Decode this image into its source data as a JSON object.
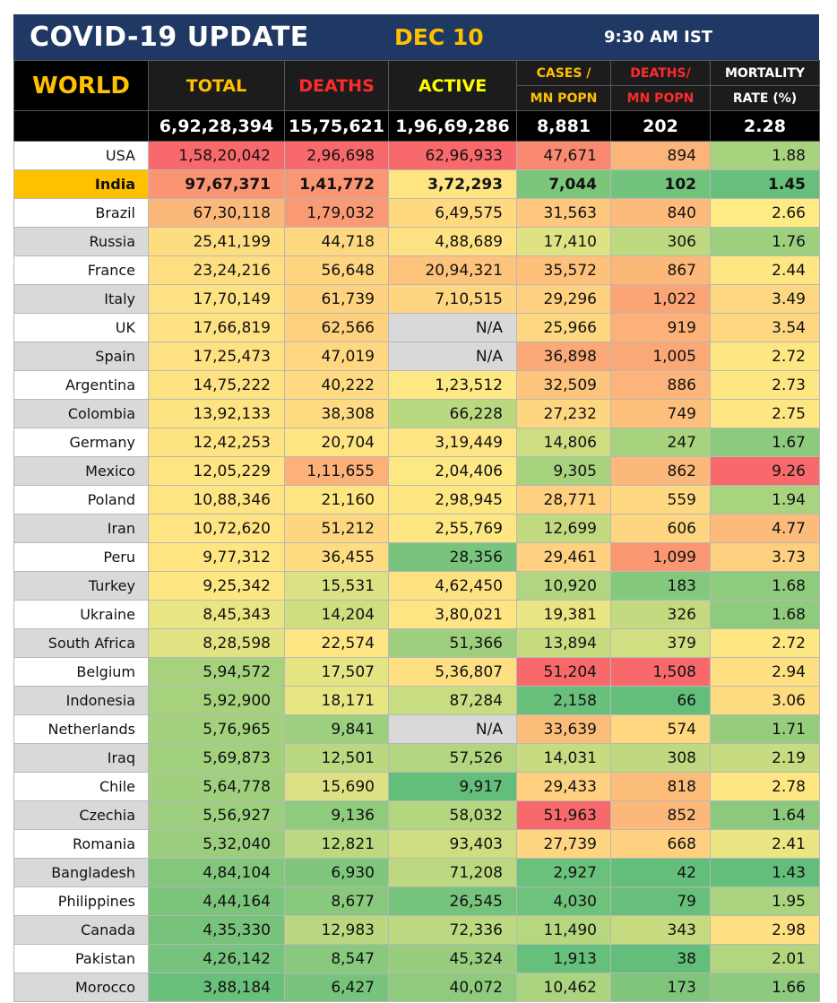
{
  "header": {
    "title": "COVID-19 UPDATE",
    "date": "DEC 10",
    "time": "9:30 AM IST"
  },
  "columns": {
    "region": "WORLD",
    "total": "TOTAL",
    "deaths": "DEATHS",
    "active": "ACTIVE",
    "cases_per_mn_1": "CASES /",
    "cases_per_mn_2": "MN POPN",
    "deaths_per_mn_1": "DEATHS/",
    "deaths_per_mn_2": "MN POPN",
    "mortality_1": "MORTALITY",
    "mortality_2": "RATE (%)"
  },
  "world": {
    "total": "6,92,28,394",
    "deaths": "15,75,621",
    "active": "1,96,69,286",
    "cases_per_mn": "8,881",
    "deaths_per_mn": "202",
    "mortality": "2.28"
  },
  "colors": {
    "title_bar": "#1f3864",
    "accent": "#ffc000",
    "heat_red": "#f8696b",
    "heat_orange": "#fbaa77",
    "heat_yellow": "#ffeb84",
    "heat_green": "#63be7b"
  },
  "rows": [
    {
      "country": "USA",
      "total": "1,58,20,042",
      "deaths": "2,96,698",
      "active": "62,96,933",
      "cases_mn": "47,671",
      "deaths_mn": "894",
      "mortality": "1.88",
      "c": [
        "#f8696b",
        "#f8696b",
        "#f8696b",
        "#f98a71",
        "#fbb479",
        "#a7d37e"
      ]
    },
    {
      "country": "India",
      "total": "97,67,371",
      "deaths": "1,41,772",
      "active": "3,72,293",
      "cases_mn": "7,044",
      "deaths_mn": "102",
      "mortality": "1.45",
      "c": [
        "#fa9473",
        "#fa9673",
        "#fee582",
        "#7cc67c",
        "#72c37c",
        "#66bf7b"
      ]
    },
    {
      "country": "Brazil",
      "total": "67,30,118",
      "deaths": "1,79,032",
      "active": "6,49,575",
      "cases_mn": "31,563",
      "deaths_mn": "840",
      "mortality": "2.66",
      "c": [
        "#fcb87a",
        "#fa9a74",
        "#fed980",
        "#fdc77d",
        "#fcbb7a",
        "#feeb84"
      ]
    },
    {
      "country": "Russia",
      "total": "25,41,199",
      "deaths": "44,718",
      "active": "4,88,689",
      "cases_mn": "17,410",
      "deaths_mn": "306",
      "mortality": "1.76",
      "c": [
        "#fedd81",
        "#fed880",
        "#fee182",
        "#dfe283",
        "#bfd980",
        "#9dd07e"
      ]
    },
    {
      "country": "France",
      "total": "23,24,216",
      "deaths": "56,648",
      "active": "20,94,321",
      "cases_mn": "35,572",
      "deaths_mn": "867",
      "mortality": "2.44",
      "c": [
        "#fede81",
        "#fed47f",
        "#fdc27c",
        "#fdc17c",
        "#fbb879",
        "#fee683"
      ]
    },
    {
      "country": "Italy",
      "total": "17,70,149",
      "deaths": "61,739",
      "active": "7,10,515",
      "cases_mn": "29,296",
      "deaths_mn": "1,022",
      "mortality": "3.49",
      "c": [
        "#fee182",
        "#fed27f",
        "#fed680",
        "#fed07f",
        "#fba476",
        "#fed781"
      ]
    },
    {
      "country": "UK",
      "total": "17,66,819",
      "deaths": "62,566",
      "active": "N/A",
      "cases_mn": "25,966",
      "deaths_mn": "919",
      "mortality": "3.54",
      "c": [
        "#fee182",
        "#fed17f",
        "#d9d9d9",
        "#fed881",
        "#fcb179",
        "#fed780"
      ]
    },
    {
      "country": "Spain",
      "total": "17,25,473",
      "deaths": "47,019",
      "active": "N/A",
      "cases_mn": "36,898",
      "deaths_mn": "1,005",
      "mortality": "2.72",
      "c": [
        "#fee182",
        "#fed780",
        "#d9d9d9",
        "#fbaa77",
        "#fba877",
        "#fee783"
      ]
    },
    {
      "country": "Argentina",
      "total": "14,75,222",
      "deaths": "40,222",
      "active": "1,23,512",
      "cases_mn": "32,509",
      "deaths_mn": "886",
      "mortality": "2.73",
      "c": [
        "#fee282",
        "#feda81",
        "#fee883",
        "#fdc57c",
        "#fcb47a",
        "#fee683"
      ]
    },
    {
      "country": "Colombia",
      "total": "13,92,133",
      "deaths": "38,308",
      "active": "66,228",
      "cases_mn": "27,232",
      "deaths_mn": "749",
      "mortality": "2.75",
      "c": [
        "#fee382",
        "#fedb81",
        "#b9d880",
        "#fed680",
        "#fdc07c",
        "#fee683"
      ]
    },
    {
      "country": "Germany",
      "total": "12,42,253",
      "deaths": "20,704",
      "active": "3,19,449",
      "cases_mn": "14,806",
      "deaths_mn": "247",
      "mortality": "1.67",
      "c": [
        "#fee382",
        "#fee582",
        "#fee482",
        "#cedd81",
        "#a7d37e",
        "#8dca7d"
      ]
    },
    {
      "country": "Mexico",
      "total": "12,05,229",
      "deaths": "1,11,655",
      "active": "2,04,406",
      "cases_mn": "9,305",
      "deaths_mn": "862",
      "mortality": "9.26",
      "c": [
        "#fee482",
        "#fbb178",
        "#fee883",
        "#a7d37e",
        "#fcb87a",
        "#f8696b"
      ]
    },
    {
      "country": "Poland",
      "total": "10,88,346",
      "deaths": "21,160",
      "active": "2,98,945",
      "cases_mn": "28,771",
      "deaths_mn": "559",
      "mortality": "1.94",
      "c": [
        "#fee482",
        "#fee582",
        "#fee683",
        "#fed07f",
        "#fed981",
        "#a9d47f"
      ]
    },
    {
      "country": "Iran",
      "total": "10,72,620",
      "deaths": "51,212",
      "active": "2,55,769",
      "cases_mn": "12,699",
      "deaths_mn": "606",
      "mortality": "4.77",
      "c": [
        "#fee482",
        "#fed680",
        "#fee683",
        "#c1da80",
        "#fed580",
        "#fcbb7b"
      ]
    },
    {
      "country": "Peru",
      "total": "9,77,312",
      "deaths": "36,455",
      "active": "28,356",
      "cases_mn": "29,461",
      "deaths_mn": "1,099",
      "mortality": "3.73",
      "c": [
        "#fee582",
        "#fedc81",
        "#79c47c",
        "#fed07f",
        "#fa9773",
        "#fdd07f"
      ]
    },
    {
      "country": "Turkey",
      "total": "9,25,342",
      "deaths": "15,531",
      "active": "4,62,450",
      "cases_mn": "10,920",
      "deaths_mn": "183",
      "mortality": "1.68",
      "c": [
        "#fee683",
        "#dbe283",
        "#fee282",
        "#b1d67f",
        "#84c87d",
        "#8fcb7d"
      ]
    },
    {
      "country": "Ukraine",
      "total": "8,45,343",
      "deaths": "14,204",
      "active": "3,80,021",
      "cases_mn": "19,381",
      "deaths_mn": "326",
      "mortality": "1.68",
      "c": [
        "#e9e583",
        "#d0de82",
        "#fee483",
        "#eae583",
        "#c4da80",
        "#8fcb7d"
      ]
    },
    {
      "country": "South Africa",
      "total": "8,28,598",
      "deaths": "22,574",
      "active": "51,366",
      "cases_mn": "13,894",
      "deaths_mn": "379",
      "mortality": "2.72",
      "c": [
        "#e2e383",
        "#fee583",
        "#9ecf7e",
        "#c6db80",
        "#d1df82",
        "#fee783"
      ]
    },
    {
      "country": "Belgium",
      "total": "5,94,572",
      "deaths": "17,507",
      "active": "5,36,807",
      "cases_mn": "51,204",
      "deaths_mn": "1,508",
      "mortality": "2.94",
      "c": [
        "#a6d27e",
        "#e4e483",
        "#fee082",
        "#f8696b",
        "#f8696b",
        "#fee082"
      ]
    },
    {
      "country": "Indonesia",
      "total": "5,92,900",
      "deaths": "18,171",
      "active": "87,284",
      "cases_mn": "2,158",
      "deaths_mn": "66",
      "mortality": "3.06",
      "c": [
        "#a6d27e",
        "#e8e583",
        "#c8dc81",
        "#68c07b",
        "#63be7b",
        "#fedd81"
      ]
    },
    {
      "country": "Netherlands",
      "total": "5,76,965",
      "deaths": "9,841",
      "active": "N/A",
      "cases_mn": "33,639",
      "deaths_mn": "574",
      "mortality": "1.71",
      "c": [
        "#a3d17e",
        "#9ccf7e",
        "#d9d9d9",
        "#fbbd7a",
        "#fed880",
        "#96cd7d"
      ]
    },
    {
      "country": "Iraq",
      "total": "5,69,873",
      "deaths": "12,501",
      "active": "57,526",
      "cases_mn": "14,031",
      "deaths_mn": "308",
      "mortality": "2.19",
      "c": [
        "#a2d17e",
        "#b9d880",
        "#b2d67f",
        "#c7dc81",
        "#c0d980",
        "#c7dc81"
      ]
    },
    {
      "country": "Chile",
      "total": "5,64,778",
      "deaths": "15,690",
      "active": "9,917",
      "cases_mn": "29,433",
      "deaths_mn": "818",
      "mortality": "2.78",
      "c": [
        "#a0d07e",
        "#dce283",
        "#63be7b",
        "#fed07f",
        "#fcbd7b",
        "#fee683"
      ]
    },
    {
      "country": "Czechia",
      "total": "5,56,927",
      "deaths": "9,136",
      "active": "58,032",
      "cases_mn": "51,963",
      "deaths_mn": "852",
      "mortality": "1.64",
      "c": [
        "#9ecf7e",
        "#8fcb7d",
        "#b3d67f",
        "#f8696b",
        "#fcb87a",
        "#8bca7d"
      ]
    },
    {
      "country": "Romania",
      "total": "5,32,040",
      "deaths": "12,821",
      "active": "93,403",
      "cases_mn": "27,739",
      "deaths_mn": "668",
      "mortality": "2.41",
      "c": [
        "#9acd7e",
        "#bcd880",
        "#cedd81",
        "#fed580",
        "#fed07f",
        "#ebe583"
      ]
    },
    {
      "country": "Bangladesh",
      "total": "4,84,104",
      "deaths": "6,930",
      "active": "71,208",
      "cases_mn": "2,927",
      "deaths_mn": "42",
      "mortality": "1.43",
      "c": [
        "#83c77c",
        "#80c67c",
        "#bcd880",
        "#6ac17b",
        "#63be7b",
        "#63be7b"
      ]
    },
    {
      "country": "Philippines",
      "total": "4,44,164",
      "deaths": "8,677",
      "active": "26,545",
      "cases_mn": "4,030",
      "deaths_mn": "79",
      "mortality": "1.95",
      "c": [
        "#7ac47c",
        "#89c97d",
        "#76c37c",
        "#6ec27b",
        "#67bf7b",
        "#aad47f"
      ]
    },
    {
      "country": "Canada",
      "total": "4,35,330",
      "deaths": "12,983",
      "active": "72,336",
      "cases_mn": "11,490",
      "deaths_mn": "343",
      "mortality": "2.98",
      "c": [
        "#78c37c",
        "#bbd880",
        "#bcd880",
        "#b6d77f",
        "#c6db80",
        "#fee082"
      ]
    },
    {
      "country": "Pakistan",
      "total": "4,26,142",
      "deaths": "8,547",
      "active": "45,324",
      "cases_mn": "1,913",
      "deaths_mn": "38",
      "mortality": "2.01",
      "c": [
        "#75c37c",
        "#88c97d",
        "#98cd7e",
        "#66bf7b",
        "#63be7b",
        "#b1d67f"
      ]
    },
    {
      "country": "Morocco",
      "total": "3,88,184",
      "deaths": "6,427",
      "active": "40,072",
      "cases_mn": "10,462",
      "deaths_mn": "173",
      "mortality": "1.66",
      "c": [
        "#69c07b",
        "#78c47c",
        "#90cb7d",
        "#aad47f",
        "#7fc67c",
        "#8dca7d"
      ]
    }
  ]
}
